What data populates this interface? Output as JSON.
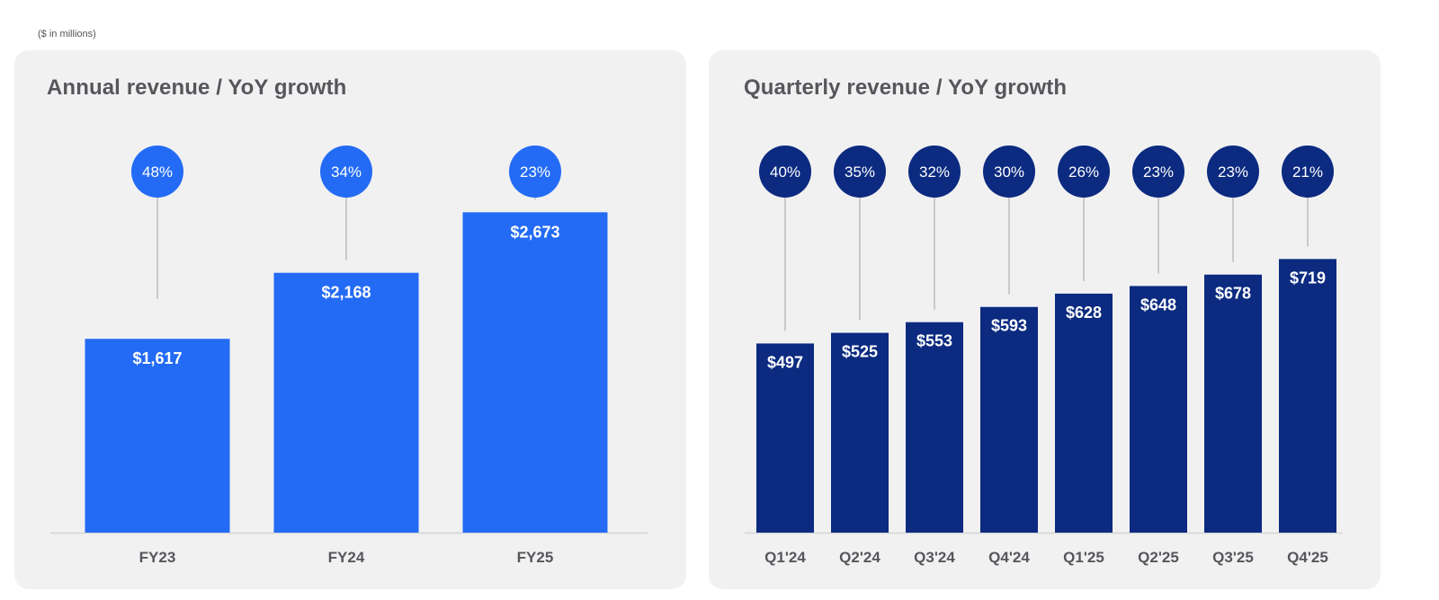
{
  "units_note": "($ in millions)",
  "colors": {
    "annual_bar": "#236bf5",
    "quarterly_bar": "#0b2a80",
    "connector": "#c9c9cb",
    "axis": "#d4d4d6",
    "panel_bg": "#f1f1f2"
  },
  "chart_data": [
    {
      "type": "bar",
      "title": "Annual revenue / YoY growth",
      "categories": [
        "FY23",
        "FY24",
        "FY25"
      ],
      "values": [
        1617,
        2168,
        2673
      ],
      "value_labels": [
        "$1,617",
        "$2,168",
        "$2,673"
      ],
      "growth_labels": [
        "48%",
        "34%",
        "23%"
      ],
      "ylim": [
        0,
        3350
      ],
      "grid": false,
      "legend": "none"
    },
    {
      "type": "bar",
      "title": "Quarterly revenue / YoY growth",
      "categories": [
        "Q1'24",
        "Q2'24",
        "Q3'24",
        "Q4'24",
        "Q1'25",
        "Q2'25",
        "Q3'25",
        "Q4'25"
      ],
      "values": [
        497,
        525,
        553,
        593,
        628,
        648,
        678,
        719
      ],
      "value_labels": [
        "$497",
        "$525",
        "$553",
        "$593",
        "$628",
        "$648",
        "$678",
        "$719"
      ],
      "growth_labels": [
        "40%",
        "35%",
        "32%",
        "30%",
        "26%",
        "23%",
        "23%",
        "21%"
      ],
      "ylim": [
        0,
        1055
      ],
      "grid": false,
      "legend": "none"
    }
  ]
}
